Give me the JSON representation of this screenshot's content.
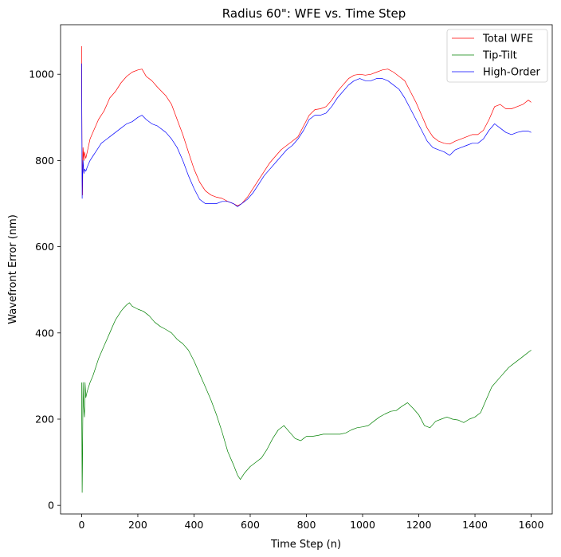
{
  "chart_data": {
    "type": "line",
    "title": "Radius 60\": WFE vs. Time Step",
    "xlabel": "Time Step (n)",
    "ylabel": "Wavefront Error (nm)",
    "xlim": [
      -75,
      1675
    ],
    "ylim": [
      -20,
      1115
    ],
    "xticks": [
      0,
      200,
      400,
      600,
      800,
      1000,
      1200,
      1400,
      1600
    ],
    "yticks": [
      0,
      200,
      400,
      600,
      800,
      1000
    ],
    "grid": false,
    "legend_position": "top-right",
    "series": [
      {
        "name": "Total WFE",
        "color": "#ff0000",
        "points": [
          [
            0,
            1065
          ],
          [
            1,
            850
          ],
          [
            2,
            760
          ],
          [
            3,
            720
          ],
          [
            5,
            830
          ],
          [
            8,
            800
          ],
          [
            10,
            820
          ],
          [
            15,
            805
          ],
          [
            20,
            820
          ],
          [
            30,
            850
          ],
          [
            40,
            865
          ],
          [
            50,
            880
          ],
          [
            60,
            895
          ],
          [
            70,
            905
          ],
          [
            80,
            915
          ],
          [
            90,
            930
          ],
          [
            100,
            945
          ],
          [
            120,
            960
          ],
          [
            140,
            980
          ],
          [
            160,
            995
          ],
          [
            180,
            1005
          ],
          [
            200,
            1010
          ],
          [
            215,
            1012
          ],
          [
            230,
            995
          ],
          [
            250,
            985
          ],
          [
            270,
            970
          ],
          [
            300,
            950
          ],
          [
            320,
            930
          ],
          [
            340,
            895
          ],
          [
            360,
            860
          ],
          [
            380,
            820
          ],
          [
            400,
            780
          ],
          [
            420,
            750
          ],
          [
            440,
            730
          ],
          [
            460,
            720
          ],
          [
            480,
            715
          ],
          [
            500,
            712
          ],
          [
            520,
            705
          ],
          [
            540,
            700
          ],
          [
            555,
            695
          ],
          [
            570,
            700
          ],
          [
            590,
            715
          ],
          [
            610,
            735
          ],
          [
            630,
            755
          ],
          [
            650,
            775
          ],
          [
            670,
            795
          ],
          [
            690,
            810
          ],
          [
            710,
            825
          ],
          [
            730,
            835
          ],
          [
            750,
            845
          ],
          [
            770,
            855
          ],
          [
            790,
            880
          ],
          [
            810,
            905
          ],
          [
            830,
            918
          ],
          [
            850,
            920
          ],
          [
            870,
            925
          ],
          [
            890,
            940
          ],
          [
            910,
            960
          ],
          [
            930,
            975
          ],
          [
            950,
            990
          ],
          [
            970,
            998
          ],
          [
            990,
            1000
          ],
          [
            1010,
            998
          ],
          [
            1030,
            1000
          ],
          [
            1050,
            1005
          ],
          [
            1070,
            1010
          ],
          [
            1090,
            1012
          ],
          [
            1110,
            1005
          ],
          [
            1130,
            995
          ],
          [
            1150,
            985
          ],
          [
            1170,
            960
          ],
          [
            1190,
            935
          ],
          [
            1210,
            905
          ],
          [
            1230,
            875
          ],
          [
            1250,
            855
          ],
          [
            1270,
            845
          ],
          [
            1290,
            840
          ],
          [
            1310,
            838
          ],
          [
            1330,
            845
          ],
          [
            1350,
            850
          ],
          [
            1370,
            855
          ],
          [
            1390,
            860
          ],
          [
            1410,
            860
          ],
          [
            1430,
            870
          ],
          [
            1450,
            895
          ],
          [
            1470,
            925
          ],
          [
            1490,
            930
          ],
          [
            1510,
            920
          ],
          [
            1530,
            920
          ],
          [
            1550,
            925
          ],
          [
            1570,
            930
          ],
          [
            1590,
            940
          ],
          [
            1600,
            935
          ]
        ]
      },
      {
        "name": "Tip-Tilt",
        "color": "#008000",
        "points": [
          [
            0,
            285
          ],
          [
            1,
            150
          ],
          [
            2,
            30
          ],
          [
            3,
            100
          ],
          [
            5,
            285
          ],
          [
            7,
            230
          ],
          [
            10,
            205
          ],
          [
            12,
            285
          ],
          [
            15,
            250
          ],
          [
            20,
            265
          ],
          [
            30,
            285
          ],
          [
            40,
            300
          ],
          [
            50,
            320
          ],
          [
            60,
            340
          ],
          [
            70,
            355
          ],
          [
            80,
            370
          ],
          [
            90,
            385
          ],
          [
            100,
            400
          ],
          [
            110,
            415
          ],
          [
            120,
            430
          ],
          [
            130,
            440
          ],
          [
            140,
            450
          ],
          [
            150,
            458
          ],
          [
            160,
            465
          ],
          [
            170,
            470
          ],
          [
            180,
            462
          ],
          [
            200,
            455
          ],
          [
            220,
            450
          ],
          [
            240,
            440
          ],
          [
            260,
            425
          ],
          [
            280,
            415
          ],
          [
            300,
            408
          ],
          [
            320,
            400
          ],
          [
            340,
            385
          ],
          [
            360,
            375
          ],
          [
            380,
            360
          ],
          [
            400,
            335
          ],
          [
            420,
            305
          ],
          [
            440,
            275
          ],
          [
            460,
            245
          ],
          [
            480,
            210
          ],
          [
            500,
            170
          ],
          [
            520,
            125
          ],
          [
            540,
            95
          ],
          [
            555,
            70
          ],
          [
            565,
            60
          ],
          [
            580,
            75
          ],
          [
            600,
            90
          ],
          [
            620,
            100
          ],
          [
            640,
            110
          ],
          [
            660,
            130
          ],
          [
            680,
            155
          ],
          [
            700,
            175
          ],
          [
            720,
            185
          ],
          [
            740,
            170
          ],
          [
            760,
            155
          ],
          [
            780,
            150
          ],
          [
            800,
            160
          ],
          [
            820,
            160
          ],
          [
            840,
            162
          ],
          [
            860,
            165
          ],
          [
            880,
            165
          ],
          [
            900,
            165
          ],
          [
            920,
            165
          ],
          [
            940,
            168
          ],
          [
            960,
            175
          ],
          [
            980,
            180
          ],
          [
            1000,
            182
          ],
          [
            1020,
            185
          ],
          [
            1040,
            195
          ],
          [
            1060,
            205
          ],
          [
            1080,
            212
          ],
          [
            1100,
            218
          ],
          [
            1120,
            220
          ],
          [
            1140,
            230
          ],
          [
            1160,
            238
          ],
          [
            1180,
            225
          ],
          [
            1200,
            210
          ],
          [
            1220,
            185
          ],
          [
            1240,
            180
          ],
          [
            1260,
            195
          ],
          [
            1280,
            200
          ],
          [
            1300,
            205
          ],
          [
            1320,
            200
          ],
          [
            1340,
            198
          ],
          [
            1360,
            192
          ],
          [
            1380,
            200
          ],
          [
            1400,
            205
          ],
          [
            1420,
            215
          ],
          [
            1440,
            245
          ],
          [
            1460,
            275
          ],
          [
            1480,
            290
          ],
          [
            1500,
            305
          ],
          [
            1520,
            320
          ],
          [
            1540,
            330
          ],
          [
            1560,
            340
          ],
          [
            1580,
            350
          ],
          [
            1600,
            360
          ]
        ]
      },
      {
        "name": "High-Order",
        "color": "#0000ff",
        "points": [
          [
            0,
            1025
          ],
          [
            1,
            850
          ],
          [
            2,
            712
          ],
          [
            3,
            760
          ],
          [
            5,
            800
          ],
          [
            8,
            770
          ],
          [
            10,
            780
          ],
          [
            15,
            775
          ],
          [
            20,
            785
          ],
          [
            30,
            800
          ],
          [
            40,
            810
          ],
          [
            50,
            820
          ],
          [
            60,
            830
          ],
          [
            70,
            840
          ],
          [
            80,
            845
          ],
          [
            90,
            850
          ],
          [
            100,
            855
          ],
          [
            120,
            865
          ],
          [
            140,
            875
          ],
          [
            160,
            885
          ],
          [
            180,
            890
          ],
          [
            200,
            900
          ],
          [
            215,
            905
          ],
          [
            230,
            895
          ],
          [
            250,
            885
          ],
          [
            270,
            880
          ],
          [
            300,
            865
          ],
          [
            320,
            850
          ],
          [
            340,
            830
          ],
          [
            360,
            800
          ],
          [
            380,
            765
          ],
          [
            400,
            735
          ],
          [
            420,
            710
          ],
          [
            440,
            700
          ],
          [
            460,
            700
          ],
          [
            480,
            700
          ],
          [
            500,
            705
          ],
          [
            520,
            705
          ],
          [
            540,
            700
          ],
          [
            555,
            693
          ],
          [
            570,
            700
          ],
          [
            590,
            710
          ],
          [
            610,
            725
          ],
          [
            630,
            745
          ],
          [
            650,
            765
          ],
          [
            670,
            780
          ],
          [
            690,
            795
          ],
          [
            710,
            810
          ],
          [
            730,
            825
          ],
          [
            750,
            835
          ],
          [
            770,
            850
          ],
          [
            790,
            870
          ],
          [
            810,
            895
          ],
          [
            830,
            905
          ],
          [
            850,
            905
          ],
          [
            870,
            910
          ],
          [
            890,
            925
          ],
          [
            910,
            945
          ],
          [
            930,
            960
          ],
          [
            950,
            975
          ],
          [
            970,
            985
          ],
          [
            990,
            990
          ],
          [
            1010,
            985
          ],
          [
            1030,
            985
          ],
          [
            1050,
            990
          ],
          [
            1070,
            990
          ],
          [
            1090,
            985
          ],
          [
            1110,
            975
          ],
          [
            1130,
            965
          ],
          [
            1150,
            945
          ],
          [
            1170,
            920
          ],
          [
            1190,
            895
          ],
          [
            1210,
            870
          ],
          [
            1230,
            845
          ],
          [
            1250,
            830
          ],
          [
            1270,
            825
          ],
          [
            1290,
            820
          ],
          [
            1310,
            812
          ],
          [
            1330,
            825
          ],
          [
            1350,
            830
          ],
          [
            1370,
            835
          ],
          [
            1390,
            840
          ],
          [
            1410,
            840
          ],
          [
            1430,
            850
          ],
          [
            1450,
            870
          ],
          [
            1470,
            885
          ],
          [
            1490,
            875
          ],
          [
            1510,
            865
          ],
          [
            1530,
            860
          ],
          [
            1550,
            865
          ],
          [
            1570,
            868
          ],
          [
            1590,
            868
          ],
          [
            1600,
            865
          ]
        ]
      }
    ]
  }
}
